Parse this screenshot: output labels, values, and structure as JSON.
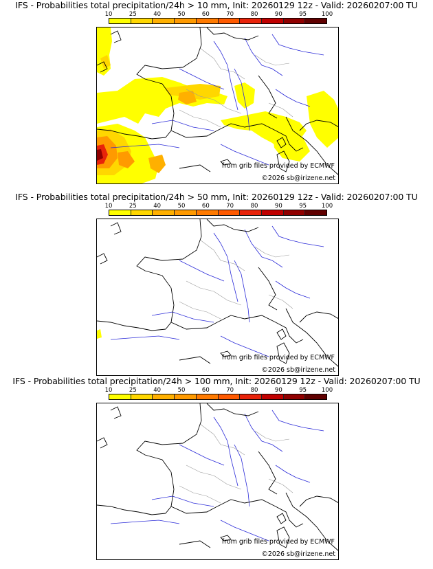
{
  "panels": [
    {
      "title": "IFS - Probabilities total precipitation/24h > 10 mm, Init: 20260129 12z - Valid: 20260207:00 TU"
    },
    {
      "title": "IFS - Probabilities total precipitation/24h > 50 mm, Init: 20260129 12z - Valid: 20260207:00 TU"
    },
    {
      "title": "IFS - Probabilities total precipitation/24h > 100 mm, Init: 20260129 12z - Valid: 20260207:00 TU"
    }
  ],
  "colorbar": {
    "ticks": [
      "10",
      "25",
      "40",
      "50",
      "60",
      "70",
      "80",
      "90",
      "95",
      "100"
    ],
    "colors": [
      "#ffff00",
      "#ffd700",
      "#ffb000",
      "#ff9a00",
      "#ff7a00",
      "#ff5a00",
      "#e8230a",
      "#c00000",
      "#900000",
      "#600000"
    ]
  },
  "credits": {
    "source": "from grib files provided by ECMWF",
    "copyright": "©2026 sb@irizene.net"
  },
  "map_colors": {
    "coast": "#000000",
    "rivers": "#2a2ad8",
    "regions": "#9a9a9a"
  }
}
